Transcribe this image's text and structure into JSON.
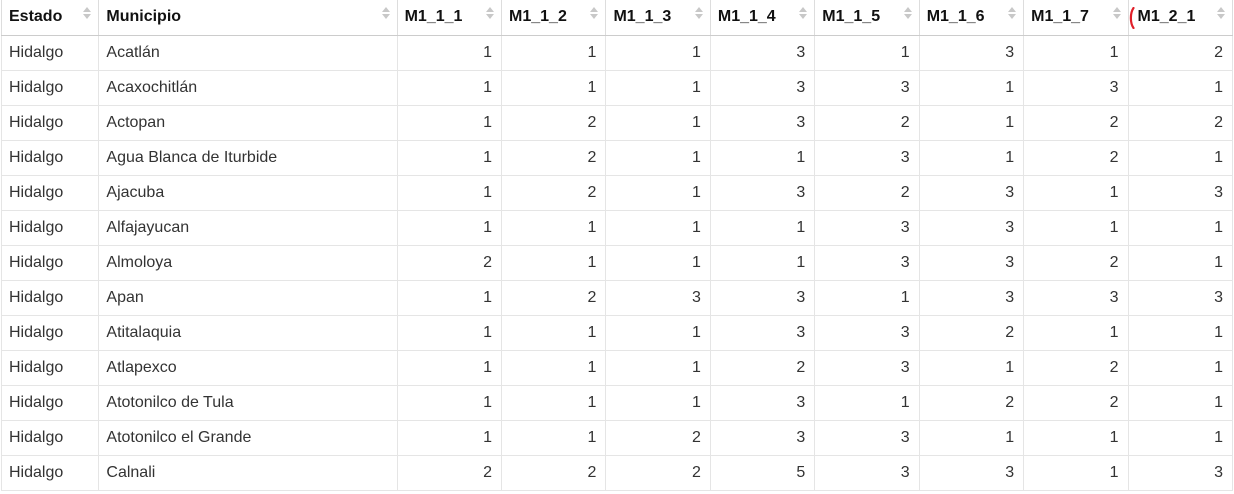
{
  "table": {
    "columns": [
      "Estado",
      "Municipio",
      "M1_1_1",
      "M1_1_2",
      "M1_1_3",
      "M1_1_4",
      "M1_1_5",
      "M1_1_6",
      "M1_1_7",
      "M1_2_1"
    ],
    "rows": [
      [
        "Hidalgo",
        "Acatlán",
        "1",
        "1",
        "1",
        "3",
        "1",
        "3",
        "1",
        "2"
      ],
      [
        "Hidalgo",
        "Acaxochitlán",
        "1",
        "1",
        "1",
        "3",
        "3",
        "1",
        "3",
        "1"
      ],
      [
        "Hidalgo",
        "Actopan",
        "1",
        "2",
        "1",
        "3",
        "2",
        "1",
        "2",
        "2"
      ],
      [
        "Hidalgo",
        "Agua Blanca de Iturbide",
        "1",
        "2",
        "1",
        "1",
        "3",
        "1",
        "2",
        "1"
      ],
      [
        "Hidalgo",
        "Ajacuba",
        "1",
        "2",
        "1",
        "3",
        "2",
        "3",
        "1",
        "3"
      ],
      [
        "Hidalgo",
        "Alfajayucan",
        "1",
        "1",
        "1",
        "1",
        "3",
        "3",
        "1",
        "1"
      ],
      [
        "Hidalgo",
        "Almoloya",
        "2",
        "1",
        "1",
        "1",
        "3",
        "3",
        "2",
        "1"
      ],
      [
        "Hidalgo",
        "Apan",
        "1",
        "2",
        "3",
        "3",
        "1",
        "3",
        "3",
        "3"
      ],
      [
        "Hidalgo",
        "Atitalaquia",
        "1",
        "1",
        "1",
        "3",
        "3",
        "2",
        "1",
        "1"
      ],
      [
        "Hidalgo",
        "Atlapexco",
        "1",
        "1",
        "1",
        "2",
        "3",
        "1",
        "2",
        "1"
      ],
      [
        "Hidalgo",
        "Atotonilco de Tula",
        "1",
        "1",
        "1",
        "3",
        "1",
        "2",
        "2",
        "1"
      ],
      [
        "Hidalgo",
        "Atotonilco el Grande",
        "1",
        "1",
        "2",
        "3",
        "3",
        "1",
        "1",
        "1"
      ],
      [
        "Hidalgo",
        "Calnali",
        "2",
        "2",
        "2",
        "5",
        "3",
        "3",
        "1",
        "3"
      ]
    ]
  },
  "colors": {
    "sort_arrow": "#c8c8c8",
    "annotation_mark": "#e0202a"
  },
  "icons": {
    "sort": "sort-arrows-icon",
    "annotation": "red-mark-icon"
  }
}
